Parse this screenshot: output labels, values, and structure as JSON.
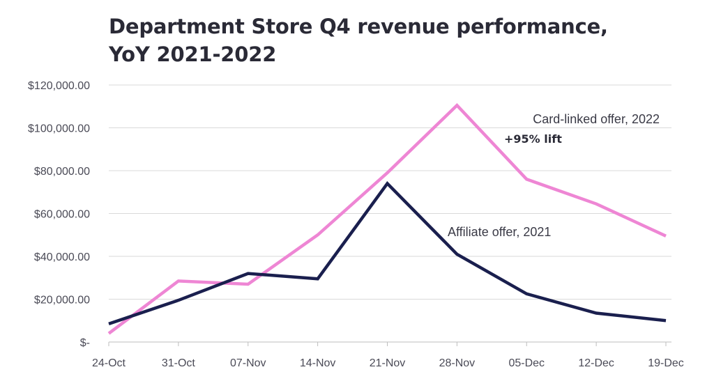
{
  "title": {
    "line1": "Department Store Q4 revenue performance,",
    "line2": "YoY 2021-2022"
  },
  "chart_data": {
    "type": "line",
    "title": "Department Store Q4 revenue performance, YoY 2021-2022",
    "xlabel": "",
    "ylabel": "",
    "categories": [
      "24-Oct",
      "31-Oct",
      "07-Nov",
      "14-Nov",
      "21-Nov",
      "28-Nov",
      "05-Dec",
      "12-Dec",
      "19-Dec"
    ],
    "ylim": [
      0,
      120000
    ],
    "yticks": [
      0,
      20000,
      40000,
      60000,
      80000,
      100000,
      120000
    ],
    "ytick_labels": [
      "$-",
      "$20,000.00",
      "$40,000.00",
      "$60,000.00",
      "$80,000.00",
      "$100,000.00",
      "$120,000.00"
    ],
    "grid": true,
    "series": [
      {
        "name": "Card-linked offer, 2022",
        "color": "#ee86d4",
        "values": [
          4000,
          28500,
          27000,
          50000,
          79000,
          110500,
          76000,
          64500,
          49500
        ]
      },
      {
        "name": "Affiliate offer, 2021",
        "color": "#1a1f4e",
        "values": [
          8500,
          19500,
          32000,
          29500,
          74000,
          41000,
          22500,
          13500,
          10000
        ]
      }
    ],
    "annotations": [
      {
        "text": "Card-linked offer, 2022",
        "series": 0
      },
      {
        "text": "+95% lift",
        "series": 0,
        "bold": true
      },
      {
        "text": "Affiliate offer, 2021",
        "series": 1
      }
    ]
  }
}
